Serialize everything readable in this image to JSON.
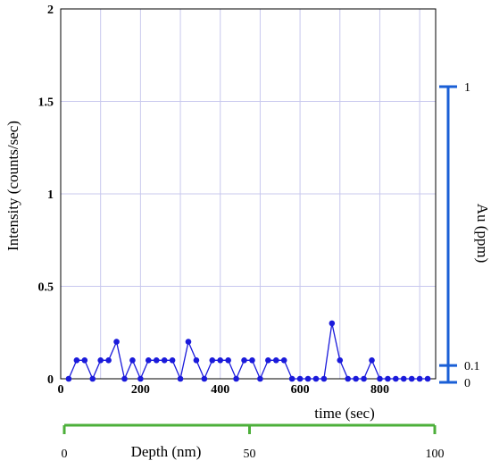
{
  "chart_data": {
    "type": "line",
    "title": "",
    "xlabel": "time (sec)",
    "ylabel": "Intensity (counts/sec)",
    "xlim": [
      0,
      940
    ],
    "ylim": [
      0,
      2
    ],
    "x_ticks": [
      "0",
      "200",
      "400",
      "600",
      "800"
    ],
    "y_ticks": [
      "0",
      "0.5",
      "1",
      "1.5",
      "2"
    ],
    "grid": true,
    "series": [
      {
        "color": "#1a1adb",
        "x": [
          20,
          40,
          60,
          80,
          100,
          120,
          140,
          160,
          180,
          200,
          220,
          240,
          260,
          280,
          300,
          320,
          340,
          360,
          380,
          400,
          420,
          440,
          460,
          480,
          500,
          520,
          540,
          560,
          580,
          600,
          620,
          640,
          660,
          680,
          700,
          720,
          740,
          760,
          780,
          800,
          820,
          840,
          860,
          880,
          900,
          920
        ],
        "values": [
          0,
          0.1,
          0.1,
          0,
          0.1,
          0.1,
          0.2,
          0,
          0.1,
          0,
          0.1,
          0.1,
          0.1,
          0.1,
          0,
          0.2,
          0.1,
          0,
          0.1,
          0.1,
          0.1,
          0,
          0.1,
          0.1,
          0,
          0.1,
          0.1,
          0.1,
          0,
          0,
          0,
          0,
          0,
          0.3,
          0.1,
          0,
          0,
          0,
          0.1,
          0,
          0,
          0,
          0,
          0,
          0,
          0
        ]
      }
    ],
    "right_axis": {
      "label": "Au (ppm)",
      "color": "#1a5fd6",
      "ticks": [
        "0",
        "0.1",
        "1"
      ],
      "tick_values": [
        0,
        0.1,
        1
      ],
      "scale": "log"
    },
    "depth_axis": {
      "label": "Depth (nm)",
      "color": "#4caf3a",
      "ticks": [
        "0",
        "50",
        "100"
      ],
      "tick_values": [
        0,
        50,
        100
      ],
      "range": [
        0,
        100
      ]
    }
  }
}
